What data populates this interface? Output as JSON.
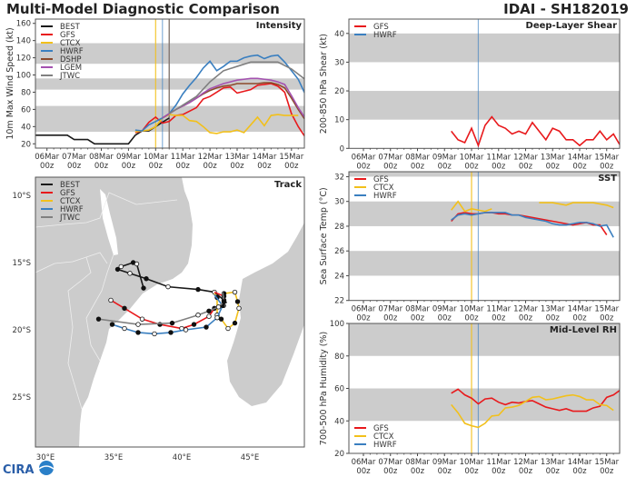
{
  "header": {
    "title": "Multi-Model Diagnostic Comparison",
    "storm": "IDAI - SH182019"
  },
  "logo": {
    "text": "CIRA"
  },
  "colors": {
    "BEST": "#1a1a1a",
    "GFS": "#e8191c",
    "CTCX": "#f2c01b",
    "HWRF": "#3a7fc0",
    "DSHP": "#8b4a2b",
    "LGEM": "#a452b0",
    "JTWC": "#808080",
    "band": "#cccccc",
    "land": "#cccccc"
  },
  "chart_data": [
    {
      "type": "line",
      "title": "Intensity",
      "ylabel": "10m Max Wind Speed (kt)",
      "ylim": [
        15,
        165
      ],
      "yticks": [
        20,
        40,
        60,
        80,
        100,
        120,
        140,
        160
      ],
      "bands": [
        [
          34,
          64
        ],
        [
          83,
          96
        ],
        [
          113,
          137
        ]
      ],
      "xticks": [
        {
          "d": "06Mar",
          "h": "00z"
        },
        {
          "d": "07Mar",
          "h": "00z"
        },
        {
          "d": "08Mar",
          "h": "00z"
        },
        {
          "d": "09Mar",
          "h": "00z"
        },
        {
          "d": "10Mar",
          "h": "00z"
        },
        {
          "d": "11Mar",
          "h": "00z"
        },
        {
          "d": "12Mar",
          "h": "00z"
        },
        {
          "d": "13Mar",
          "h": "00z"
        },
        {
          "d": "14Mar",
          "h": "00z"
        },
        {
          "d": "15Mar",
          "h": "00z"
        }
      ],
      "legend": "upper-left",
      "vlines": [
        {
          "time": "2019-03-10T00Z",
          "series": "CTCX"
        },
        {
          "time": "2019-03-10T06Z",
          "series": "HWRF"
        },
        {
          "time": "2019-03-10T12Z",
          "series": "DSHP"
        },
        {
          "time": "2019-03-10T12Z",
          "series": "JTWC"
        }
      ],
      "series": [
        {
          "name": "BEST",
          "start": "2019-03-05T12Z",
          "step_hours": 6,
          "values": [
            30,
            30,
            30,
            30,
            30,
            30,
            25,
            25,
            25,
            20,
            20,
            20,
            20,
            20,
            20,
            30,
            35,
            35,
            40,
            45,
            50
          ]
        },
        {
          "name": "GFS",
          "start": "2019-03-09T06Z",
          "step_hours": 6,
          "values": [
            33,
            35,
            45,
            51,
            44,
            46,
            53,
            54,
            58,
            62,
            72,
            75,
            80,
            85,
            86,
            79,
            81,
            83,
            88,
            89,
            90,
            87,
            80,
            55,
            40,
            28
          ]
        },
        {
          "name": "CTCX",
          "start": "2019-03-09T06Z",
          "step_hours": 6,
          "values": [
            34,
            35,
            36,
            40,
            50,
            54,
            53,
            53,
            47,
            46,
            40,
            33,
            32,
            34,
            34,
            36,
            33,
            42,
            51,
            41,
            53,
            54,
            53,
            53,
            53
          ]
        },
        {
          "name": "HWRF",
          "start": "2019-03-09T06Z",
          "step_hours": 6,
          "values": [
            36,
            35,
            42,
            46,
            50,
            55,
            65,
            78,
            88,
            97,
            108,
            116,
            105,
            110,
            116,
            116,
            120,
            122,
            123,
            119,
            122,
            123,
            115,
            105,
            95,
            78
          ]
        },
        {
          "name": "DSHP",
          "start": "2019-03-10T06Z",
          "step_hours": 6,
          "values": [
            50,
            55,
            60,
            64,
            68,
            73,
            78,
            82,
            85,
            87,
            88,
            90,
            90,
            90,
            90,
            91,
            91,
            89,
            85,
            73,
            60,
            48,
            38
          ]
        },
        {
          "name": "LGEM",
          "start": "2019-03-10T06Z",
          "step_hours": 6,
          "values": [
            50,
            55,
            60,
            64,
            68,
            73,
            79,
            84,
            87,
            90,
            92,
            94,
            95,
            96,
            96,
            95,
            94,
            92,
            89,
            76,
            62,
            50,
            40
          ]
        },
        {
          "name": "JTWC",
          "start": "2019-03-10T12Z",
          "step_hours": 12,
          "values": [
            55,
            65,
            75,
            92,
            105,
            110,
            115,
            115,
            115,
            107,
            95
          ]
        }
      ]
    },
    {
      "type": "line",
      "title": "Track",
      "xlim": [
        29.3,
        49.0
      ],
      "ylim": [
        -28.7,
        -8.65
      ],
      "lon_ticks": [
        {
          "v": 30,
          "label": "30°E"
        },
        {
          "v": 35,
          "label": "35°E"
        },
        {
          "v": 40,
          "label": "40°E"
        },
        {
          "v": 45,
          "label": "45°E"
        }
      ],
      "lat_ticks": [
        {
          "v": -10,
          "label": "10°S"
        },
        {
          "v": -15,
          "label": "15°S"
        },
        {
          "v": -20,
          "label": "20°S"
        },
        {
          "v": -25,
          "label": "25°S"
        }
      ],
      "legend": "upper-left",
      "series": [
        {
          "name": "BEST",
          "lonlat": [
            [
              43.3,
              -18.0
            ],
            [
              43.1,
              -17.8
            ],
            [
              42.4,
              -17.2
            ],
            [
              41.2,
              -17.0
            ],
            [
              39.0,
              -16.8
            ],
            [
              37.4,
              -16.2
            ],
            [
              36.2,
              -15.8
            ],
            [
              35.3,
              -15.5
            ],
            [
              35.55,
              -15.3
            ],
            [
              36.44,
              -15.0
            ],
            [
              36.7,
              -15.1
            ],
            [
              37.2,
              -16.9
            ]
          ]
        },
        {
          "name": "GFS",
          "lonlat": [
            [
              42.4,
              -17.2
            ],
            [
              43.1,
              -17.5
            ],
            [
              43.07,
              -18.2
            ],
            [
              42.4,
              -18.4
            ],
            [
              42.0,
              -19.0
            ],
            [
              40.9,
              -19.6
            ],
            [
              40.0,
              -19.9
            ],
            [
              38.4,
              -19.6
            ],
            [
              37.1,
              -19.2
            ],
            [
              35.8,
              -18.4
            ],
            [
              34.8,
              -17.8
            ]
          ]
        },
        {
          "name": "CTCX",
          "lonlat": [
            [
              42.4,
              -17.3
            ],
            [
              42.6,
              -17.6
            ],
            [
              42.6,
              -18.9
            ],
            [
              42.9,
              -19.2
            ],
            [
              43.4,
              -19.9
            ],
            [
              43.9,
              -19.5
            ],
            [
              44.2,
              -18.4
            ],
            [
              44.1,
              -17.9
            ],
            [
              43.9,
              -17.2
            ],
            [
              43.1,
              -17.3
            ]
          ]
        },
        {
          "name": "HWRF",
          "lonlat": [
            [
              42.4,
              -17.4
            ],
            [
              43.0,
              -18.2
            ],
            [
              42.6,
              -19.1
            ],
            [
              41.8,
              -19.8
            ],
            [
              40.3,
              -20.0
            ],
            [
              39.2,
              -20.2
            ],
            [
              38.0,
              -20.3
            ],
            [
              36.8,
              -20.2
            ],
            [
              35.8,
              -19.9
            ],
            [
              34.9,
              -19.6
            ]
          ]
        },
        {
          "name": "JTWC",
          "lonlat": [
            [
              43.0,
              -17.2
            ],
            [
              43.1,
              -17.9
            ],
            [
              42.7,
              -18.3
            ],
            [
              42.0,
              -18.6
            ],
            [
              41.2,
              -18.9
            ],
            [
              39.3,
              -19.5
            ],
            [
              36.8,
              -19.6
            ],
            [
              33.9,
              -19.2
            ]
          ]
        }
      ]
    },
    {
      "type": "line",
      "title": "Deep-Layer Shear",
      "ylabel": "200-850 hPa Shear (kt)",
      "ylim": [
        0,
        45
      ],
      "yticks": [
        0,
        10,
        20,
        30,
        40
      ],
      "bands": [
        [
          10,
          20
        ],
        [
          30,
          40
        ]
      ],
      "xticks": [
        {
          "d": "06Mar",
          "h": "00z"
        },
        {
          "d": "07Mar",
          "h": "00z"
        },
        {
          "d": "08Mar",
          "h": "00z"
        },
        {
          "d": "09Mar",
          "h": "00z"
        },
        {
          "d": "10Mar",
          "h": "00z"
        },
        {
          "d": "11Mar",
          "h": "00z"
        },
        {
          "d": "12Mar",
          "h": "00z"
        },
        {
          "d": "13Mar",
          "h": "00z"
        },
        {
          "d": "14Mar",
          "h": "00z"
        },
        {
          "d": "15Mar",
          "h": "00z"
        }
      ],
      "legend": "upper-left",
      "legend_entries": [
        "GFS",
        "HWRF"
      ],
      "vlines": [
        {
          "time": "2019-03-10T06Z",
          "series": "HWRF"
        }
      ],
      "series": [
        {
          "name": "GFS",
          "start": "2019-03-09T06Z",
          "step_hours": 6,
          "values": [
            6,
            3,
            2,
            7,
            1,
            8,
            11,
            8,
            7,
            5,
            6,
            5,
            9,
            6,
            3,
            7,
            6,
            3,
            3,
            1,
            3,
            3,
            6,
            3,
            5,
            1
          ]
        }
      ]
    },
    {
      "type": "line",
      "title": "SST",
      "ylabel": "Sea Surface Temp (°C)",
      "ylim": [
        22,
        32.4
      ],
      "yticks": [
        22,
        24,
        26,
        28,
        30,
        32
      ],
      "bands": [
        [
          24,
          26
        ],
        [
          28,
          30
        ],
        [
          32,
          34
        ]
      ],
      "xticks": [
        {
          "d": "06Mar",
          "h": "00z"
        },
        {
          "d": "07Mar",
          "h": "00z"
        },
        {
          "d": "08Mar",
          "h": "00z"
        },
        {
          "d": "09Mar",
          "h": "00z"
        },
        {
          "d": "10Mar",
          "h": "00z"
        },
        {
          "d": "11Mar",
          "h": "00z"
        },
        {
          "d": "12Mar",
          "h": "00z"
        },
        {
          "d": "13Mar",
          "h": "00z"
        },
        {
          "d": "14Mar",
          "h": "00z"
        },
        {
          "d": "15Mar",
          "h": "00z"
        }
      ],
      "legend": "upper-left",
      "legend_entries": [
        "GFS",
        "CTCX",
        "HWRF"
      ],
      "vlines": [
        {
          "time": "2019-03-10T00Z",
          "series": "CTCX"
        },
        {
          "time": "2019-03-10T06Z",
          "series": "HWRF"
        }
      ],
      "series": [
        {
          "name": "GFS",
          "start": "2019-03-09T06Z",
          "step_hours": 6,
          "values": [
            28.4,
            29.0,
            29.1,
            29.0,
            29.0,
            29.1,
            29.1,
            29.0,
            29.0,
            28.9,
            28.9,
            28.8,
            28.7,
            28.6,
            28.5,
            28.4,
            28.3,
            28.2,
            28.1,
            28.2,
            28.3,
            28.1,
            28.1,
            27.3
          ]
        },
        {
          "name": "CTCX",
          "start": "2019-03-09T06Z",
          "step_hours": 6,
          "values": [
            29.3,
            30.0,
            29.2,
            29.4,
            29.3,
            29.2,
            29.4,
            null,
            null,
            null,
            null,
            null,
            null,
            29.9,
            29.9,
            29.9,
            29.8,
            29.7,
            29.9,
            29.9,
            29.9,
            29.9,
            29.8,
            29.7,
            29.5
          ]
        },
        {
          "name": "HWRF",
          "start": "2019-03-09T06Z",
          "step_hours": 6,
          "values": [
            28.5,
            28.9,
            29.0,
            28.9,
            29.0,
            29.1,
            29.1,
            29.1,
            29.1,
            28.9,
            28.9,
            28.7,
            28.6,
            28.5,
            28.4,
            28.2,
            28.1,
            28.1,
            28.2,
            28.3,
            28.3,
            28.2,
            28.0,
            28.1,
            27.1
          ]
        }
      ]
    },
    {
      "type": "line",
      "title": "Mid-Level RH",
      "ylabel": "700-500 hPa Humidity (%)",
      "ylim": [
        20,
        100
      ],
      "yticks": [
        20,
        40,
        60,
        80,
        100
      ],
      "bands": [
        [
          40,
          60
        ],
        [
          80,
          100
        ]
      ],
      "xticks": [
        {
          "d": "06Mar",
          "h": "00z"
        },
        {
          "d": "07Mar",
          "h": "00z"
        },
        {
          "d": "08Mar",
          "h": "00z"
        },
        {
          "d": "09Mar",
          "h": "00z"
        },
        {
          "d": "10Mar",
          "h": "00z"
        },
        {
          "d": "11Mar",
          "h": "00z"
        },
        {
          "d": "12Mar",
          "h": "00z"
        },
        {
          "d": "13Mar",
          "h": "00z"
        },
        {
          "d": "14Mar",
          "h": "00z"
        },
        {
          "d": "15Mar",
          "h": "00z"
        }
      ],
      "legend": "lower-left",
      "legend_entries": [
        "GFS",
        "CTCX",
        "HWRF"
      ],
      "vlines": [
        {
          "time": "2019-03-10T00Z",
          "series": "CTCX"
        },
        {
          "time": "2019-03-10T06Z",
          "series": "HWRF"
        }
      ],
      "series": [
        {
          "name": "GFS",
          "start": "2019-03-09T06Z",
          "step_hours": 6,
          "values": [
            57,
            59.5,
            56,
            54,
            50.5,
            53.5,
            54,
            51.5,
            50,
            51.5,
            51,
            52,
            52.5,
            50.5,
            48.5,
            47.5,
            46.5,
            47.5,
            46,
            46,
            46,
            48,
            49,
            54.5,
            56,
            59
          ]
        },
        {
          "name": "CTCX",
          "start": "2019-03-09T06Z",
          "step_hours": 6,
          "values": [
            50,
            45,
            38.5,
            37,
            36,
            38.5,
            43,
            43.5,
            48,
            48.5,
            49.5,
            52,
            54.5,
            55,
            53,
            53.5,
            54.5,
            55.5,
            56,
            55,
            53,
            53,
            50,
            49.5,
            46.5
          ]
        }
      ]
    }
  ]
}
